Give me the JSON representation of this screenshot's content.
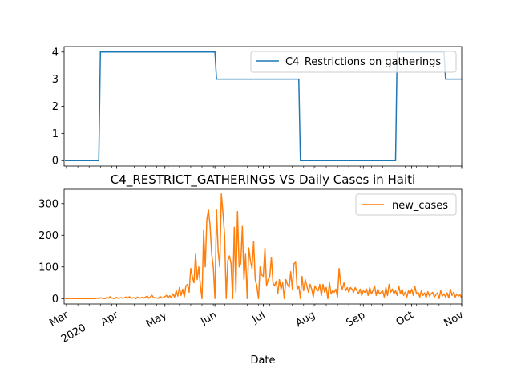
{
  "chart_data": [
    {
      "type": "line",
      "title": "",
      "xlabel": "",
      "ylabel": "",
      "x_range": [
        "2020-02-29",
        "2020-11-01"
      ],
      "ylim": [
        -0.2,
        4.2
      ],
      "yticks": [
        0,
        1,
        2,
        3,
        4
      ],
      "grid": false,
      "legend": "top-right",
      "series": [
        {
          "name": "C4_Restrictions on gatherings",
          "color": "#1f77b4",
          "step": true,
          "points": [
            [
              "2020-02-29",
              0
            ],
            [
              "2020-03-21",
              0
            ],
            [
              "2020-03-22",
              4
            ],
            [
              "2020-06-01",
              4
            ],
            [
              "2020-06-02",
              3
            ],
            [
              "2020-07-23",
              3
            ],
            [
              "2020-07-24",
              0
            ],
            [
              "2020-09-21",
              0
            ],
            [
              "2020-09-22",
              4
            ],
            [
              "2020-10-21",
              4
            ],
            [
              "2020-10-22",
              3
            ],
            [
              "2020-11-01",
              3
            ]
          ]
        }
      ]
    },
    {
      "type": "line",
      "title": "C4_RESTRICT_GATHERINGS VS Daily Cases in Haiti",
      "xlabel": "Date",
      "ylabel": "",
      "x_range": [
        "2020-02-29",
        "2020-11-01"
      ],
      "ylim": [
        -17,
        345
      ],
      "yticks": [
        0,
        100,
        200,
        300
      ],
      "grid": false,
      "legend": "top-right",
      "series": [
        {
          "name": "new_cases",
          "color": "#ff7f0e",
          "step": false,
          "points": [
            [
              "2020-02-29",
              0
            ],
            [
              "2020-03-10",
              0
            ],
            [
              "2020-03-19",
              0
            ],
            [
              "2020-03-20",
              2
            ],
            [
              "2020-03-21",
              0
            ],
            [
              "2020-03-22",
              3
            ],
            [
              "2020-03-23",
              1
            ],
            [
              "2020-03-25",
              0
            ],
            [
              "2020-03-26",
              4
            ],
            [
              "2020-03-27",
              1
            ],
            [
              "2020-03-28",
              6
            ],
            [
              "2020-03-29",
              2
            ],
            [
              "2020-03-31",
              0
            ],
            [
              "2020-04-01",
              4
            ],
            [
              "2020-04-02",
              1
            ],
            [
              "2020-04-04",
              3
            ],
            [
              "2020-04-05",
              1
            ],
            [
              "2020-04-07",
              5
            ],
            [
              "2020-04-08",
              2
            ],
            [
              "2020-04-09",
              6
            ],
            [
              "2020-04-10",
              1
            ],
            [
              "2020-04-12",
              3
            ],
            [
              "2020-04-13",
              0
            ],
            [
              "2020-04-14",
              5
            ],
            [
              "2020-04-15",
              1
            ],
            [
              "2020-04-17",
              4
            ],
            [
              "2020-04-18",
              2
            ],
            [
              "2020-04-20",
              8
            ],
            [
              "2020-04-21",
              1
            ],
            [
              "2020-04-23",
              10
            ],
            [
              "2020-04-24",
              3
            ],
            [
              "2020-04-26",
              2
            ],
            [
              "2020-04-27",
              1
            ],
            [
              "2020-04-28",
              7
            ],
            [
              "2020-04-29",
              2
            ],
            [
              "2020-04-30",
              3
            ],
            [
              "2020-05-02",
              10
            ],
            [
              "2020-05-03",
              2
            ],
            [
              "2020-05-04",
              9
            ],
            [
              "2020-05-05",
              3
            ],
            [
              "2020-05-06",
              15
            ],
            [
              "2020-05-07",
              5
            ],
            [
              "2020-05-08",
              25
            ],
            [
              "2020-05-09",
              8
            ],
            [
              "2020-05-10",
              35
            ],
            [
              "2020-05-11",
              10
            ],
            [
              "2020-05-12",
              30
            ],
            [
              "2020-05-13",
              5
            ],
            [
              "2020-05-14",
              40
            ],
            [
              "2020-05-15",
              45
            ],
            [
              "2020-05-16",
              20
            ],
            [
              "2020-05-17",
              95
            ],
            [
              "2020-05-18",
              70
            ],
            [
              "2020-05-19",
              50
            ],
            [
              "2020-05-20",
              140
            ],
            [
              "2020-05-21",
              60
            ],
            [
              "2020-05-22",
              100
            ],
            [
              "2020-05-23",
              40
            ],
            [
              "2020-05-24",
              0
            ],
            [
              "2020-05-25",
              215
            ],
            [
              "2020-05-26",
              100
            ],
            [
              "2020-05-27",
              250
            ],
            [
              "2020-05-28",
              280
            ],
            [
              "2020-05-29",
              230
            ],
            [
              "2020-05-30",
              140
            ],
            [
              "2020-05-31",
              100
            ],
            [
              "2020-06-01",
              0
            ],
            [
              "2020-06-02",
              280
            ],
            [
              "2020-06-03",
              150
            ],
            [
              "2020-06-04",
              100
            ],
            [
              "2020-06-05",
              330
            ],
            [
              "2020-06-06",
              270
            ],
            [
              "2020-06-07",
              200
            ],
            [
              "2020-06-08",
              0
            ],
            [
              "2020-06-09",
              120
            ],
            [
              "2020-06-10",
              135
            ],
            [
              "2020-06-11",
              110
            ],
            [
              "2020-06-12",
              0
            ],
            [
              "2020-06-13",
              225
            ],
            [
              "2020-06-14",
              20
            ],
            [
              "2020-06-15",
              275
            ],
            [
              "2020-06-16",
              100
            ],
            [
              "2020-06-17",
              110
            ],
            [
              "2020-06-18",
              228
            ],
            [
              "2020-06-19",
              60
            ],
            [
              "2020-06-20",
              140
            ],
            [
              "2020-06-21",
              0
            ],
            [
              "2020-06-22",
              160
            ],
            [
              "2020-06-23",
              120
            ],
            [
              "2020-06-24",
              95
            ],
            [
              "2020-06-25",
              180
            ],
            [
              "2020-06-26",
              60
            ],
            [
              "2020-06-27",
              40
            ],
            [
              "2020-06-28",
              0
            ],
            [
              "2020-06-29",
              100
            ],
            [
              "2020-06-30",
              75
            ],
            [
              "2020-07-01",
              70
            ],
            [
              "2020-07-02",
              160
            ],
            [
              "2020-07-03",
              40
            ],
            [
              "2020-07-04",
              60
            ],
            [
              "2020-07-05",
              70
            ],
            [
              "2020-07-06",
              130
            ],
            [
              "2020-07-07",
              50
            ],
            [
              "2020-07-08",
              40
            ],
            [
              "2020-07-09",
              55
            ],
            [
              "2020-07-10",
              15
            ],
            [
              "2020-07-11",
              60
            ],
            [
              "2020-07-12",
              30
            ],
            [
              "2020-07-13",
              50
            ],
            [
              "2020-07-14",
              0
            ],
            [
              "2020-07-15",
              60
            ],
            [
              "2020-07-16",
              45
            ],
            [
              "2020-07-17",
              35
            ],
            [
              "2020-07-18",
              85
            ],
            [
              "2020-07-19",
              30
            ],
            [
              "2020-07-20",
              110
            ],
            [
              "2020-07-21",
              115
            ],
            [
              "2020-07-22",
              30
            ],
            [
              "2020-07-23",
              40
            ],
            [
              "2020-07-24",
              0
            ],
            [
              "2020-07-25",
              70
            ],
            [
              "2020-07-26",
              25
            ],
            [
              "2020-07-27",
              60
            ],
            [
              "2020-07-28",
              40
            ],
            [
              "2020-07-29",
              20
            ],
            [
              "2020-07-30",
              45
            ],
            [
              "2020-07-31",
              30
            ],
            [
              "2020-08-01",
              5
            ],
            [
              "2020-08-02",
              40
            ],
            [
              "2020-08-03",
              30
            ],
            [
              "2020-08-04",
              25
            ],
            [
              "2020-08-05",
              45
            ],
            [
              "2020-08-06",
              10
            ],
            [
              "2020-08-07",
              45
            ],
            [
              "2020-08-08",
              20
            ],
            [
              "2020-08-09",
              35
            ],
            [
              "2020-08-10",
              0
            ],
            [
              "2020-08-11",
              50
            ],
            [
              "2020-08-12",
              15
            ],
            [
              "2020-08-13",
              25
            ],
            [
              "2020-08-14",
              20
            ],
            [
              "2020-08-15",
              30
            ],
            [
              "2020-08-16",
              5
            ],
            [
              "2020-08-17",
              95
            ],
            [
              "2020-08-18",
              45
            ],
            [
              "2020-08-19",
              30
            ],
            [
              "2020-08-20",
              50
            ],
            [
              "2020-08-21",
              25
            ],
            [
              "2020-08-22",
              35
            ],
            [
              "2020-08-23",
              20
            ],
            [
              "2020-08-24",
              35
            ],
            [
              "2020-08-25",
              30
            ],
            [
              "2020-08-26",
              20
            ],
            [
              "2020-08-27",
              35
            ],
            [
              "2020-08-28",
              25
            ],
            [
              "2020-08-29",
              15
            ],
            [
              "2020-08-30",
              30
            ],
            [
              "2020-08-31",
              10
            ],
            [
              "2020-09-01",
              25
            ],
            [
              "2020-09-02",
              20
            ],
            [
              "2020-09-03",
              30
            ],
            [
              "2020-09-04",
              10
            ],
            [
              "2020-09-05",
              35
            ],
            [
              "2020-09-06",
              15
            ],
            [
              "2020-09-07",
              25
            ],
            [
              "2020-09-08",
              40
            ],
            [
              "2020-09-09",
              10
            ],
            [
              "2020-09-10",
              30
            ],
            [
              "2020-09-11",
              15
            ],
            [
              "2020-09-12",
              20
            ],
            [
              "2020-09-13",
              25
            ],
            [
              "2020-09-14",
              5
            ],
            [
              "2020-09-15",
              35
            ],
            [
              "2020-09-16",
              10
            ],
            [
              "2020-09-17",
              45
            ],
            [
              "2020-09-18",
              20
            ],
            [
              "2020-09-19",
              30
            ],
            [
              "2020-09-20",
              15
            ],
            [
              "2020-09-21",
              25
            ],
            [
              "2020-09-22",
              10
            ],
            [
              "2020-09-23",
              40
            ],
            [
              "2020-09-24",
              15
            ],
            [
              "2020-09-25",
              30
            ],
            [
              "2020-09-26",
              10
            ],
            [
              "2020-09-27",
              20
            ],
            [
              "2020-09-28",
              5
            ],
            [
              "2020-09-29",
              25
            ],
            [
              "2020-09-30",
              15
            ],
            [
              "2020-10-01",
              30
            ],
            [
              "2020-10-02",
              10
            ],
            [
              "2020-10-03",
              38
            ],
            [
              "2020-10-04",
              15
            ],
            [
              "2020-10-05",
              20
            ],
            [
              "2020-10-06",
              5
            ],
            [
              "2020-10-07",
              25
            ],
            [
              "2020-10-08",
              10
            ],
            [
              "2020-10-09",
              18
            ],
            [
              "2020-10-10",
              3
            ],
            [
              "2020-10-11",
              22
            ],
            [
              "2020-10-12",
              8
            ],
            [
              "2020-10-13",
              15
            ],
            [
              "2020-10-14",
              20
            ],
            [
              "2020-10-15",
              5
            ],
            [
              "2020-10-16",
              12
            ],
            [
              "2020-10-17",
              18
            ],
            [
              "2020-10-18",
              0
            ],
            [
              "2020-10-19",
              25
            ],
            [
              "2020-10-20",
              8
            ],
            [
              "2020-10-21",
              15
            ],
            [
              "2020-10-22",
              5
            ],
            [
              "2020-10-23",
              18
            ],
            [
              "2020-10-24",
              2
            ],
            [
              "2020-10-25",
              30
            ],
            [
              "2020-10-26",
              10
            ],
            [
              "2020-10-27",
              20
            ],
            [
              "2020-10-28",
              5
            ],
            [
              "2020-10-29",
              15
            ],
            [
              "2020-10-30",
              8
            ],
            [
              "2020-10-31",
              12
            ],
            [
              "2020-11-01",
              2
            ]
          ]
        }
      ]
    }
  ],
  "x_axis": {
    "tick_dates": [
      "2020-03-01",
      "2020-04-01",
      "2020-05-01",
      "2020-06-01",
      "2020-07-01",
      "2020-08-01",
      "2020-09-01",
      "2020-10-01",
      "2020-11-01"
    ],
    "tick_labels": [
      "Mar",
      "Apr",
      "May",
      "Jun",
      "Jul",
      "Aug",
      "Sep",
      "Oct",
      "Nov"
    ],
    "year_label": "2020"
  }
}
